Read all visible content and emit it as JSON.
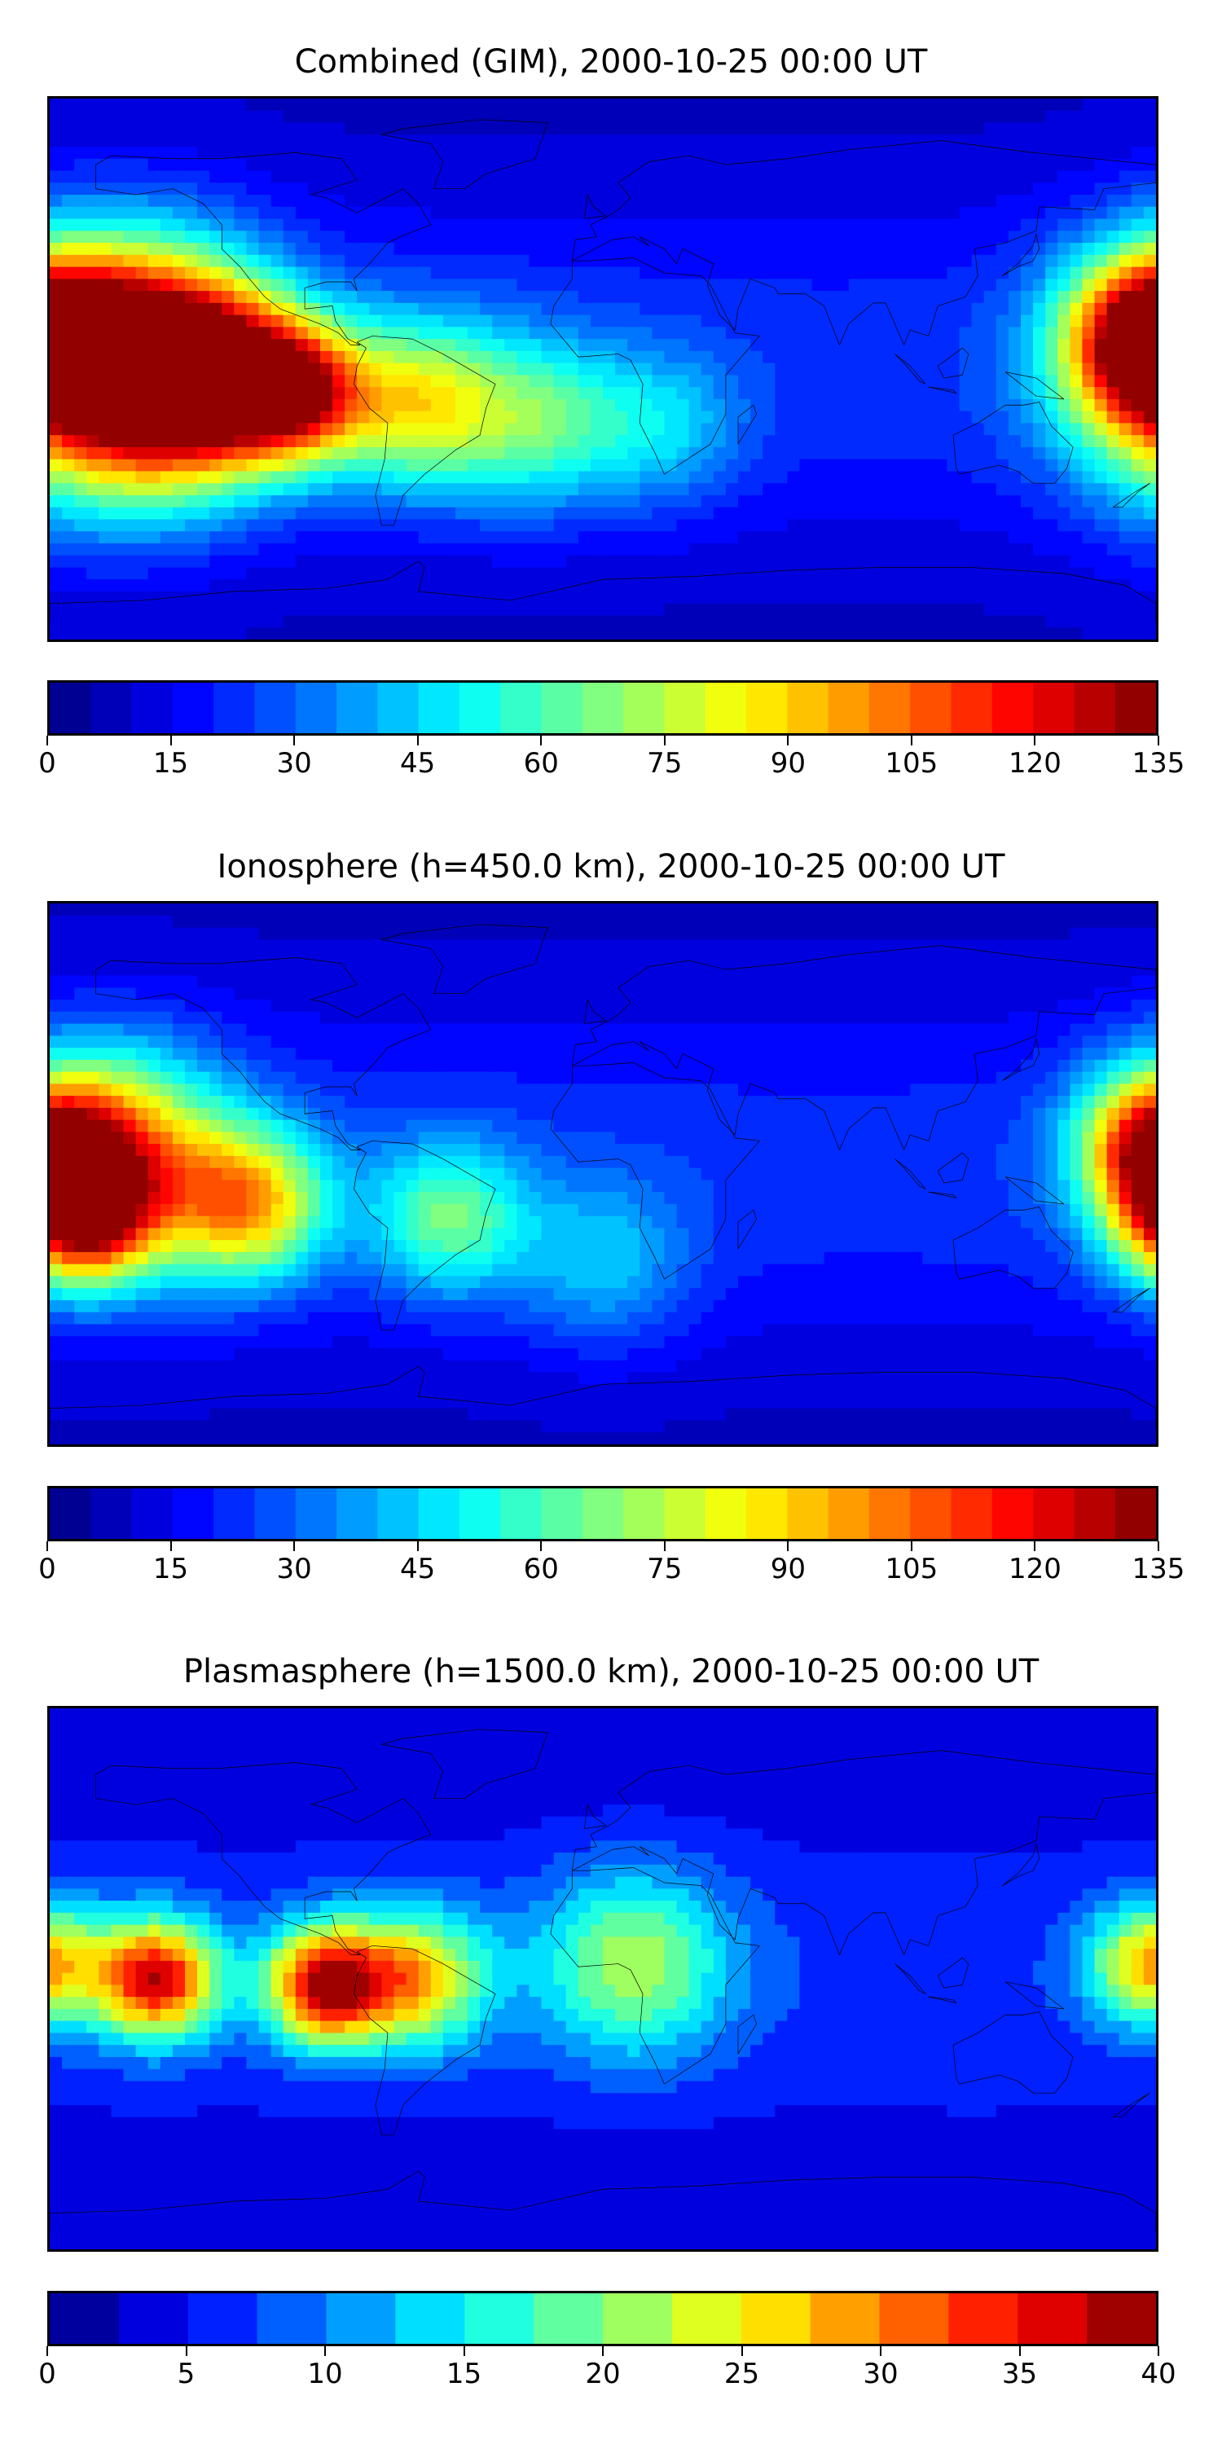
{
  "chart_data": [
    {
      "type": "heatmap",
      "title": "Combined (GIM), 2000-10-25 00:00 UT",
      "xlabel": "",
      "ylabel": "",
      "colormap": "jet",
      "grid": false,
      "colorbar": {
        "levels": [
          0,
          5,
          10,
          15,
          20,
          25,
          30,
          35,
          40,
          45,
          50,
          55,
          60,
          65,
          70,
          75,
          80,
          85,
          90,
          95,
          100,
          105,
          110,
          115,
          120,
          125,
          130,
          135
        ],
        "tick_labels": [
          "0",
          "15",
          "30",
          "45",
          "60",
          "75",
          "90",
          "105",
          "120",
          "135"
        ],
        "range": [
          0,
          135
        ]
      },
      "features": [
        {
          "lon": -160,
          "lat": 0,
          "value": 130,
          "spread": 30
        },
        {
          "lon": -130,
          "lat": -2,
          "value": 110,
          "spread": 22
        },
        {
          "lon": -100,
          "lat": -8,
          "value": 100,
          "spread": 16
        },
        {
          "lon": 178,
          "lat": 10,
          "value": 105,
          "spread": 18
        },
        {
          "lon": -60,
          "lat": -12,
          "value": 75,
          "spread": 20
        },
        {
          "lon": -20,
          "lat": -18,
          "value": 55,
          "spread": 20
        },
        {
          "lon": 20,
          "lat": -20,
          "value": 40,
          "spread": 18
        }
      ]
    },
    {
      "type": "heatmap",
      "title": "Ionosphere  (h=450.0 km), 2000-10-25 00:00 UT",
      "xlabel": "",
      "ylabel": "",
      "colormap": "jet",
      "grid": false,
      "colorbar": {
        "levels": [
          0,
          5,
          10,
          15,
          20,
          25,
          30,
          35,
          40,
          45,
          50,
          55,
          60,
          65,
          70,
          75,
          80,
          85,
          90,
          95,
          100,
          105,
          110,
          115,
          120,
          125,
          130,
          135
        ],
        "tick_labels": [
          "0",
          "15",
          "30",
          "45",
          "60",
          "75",
          "90",
          "105",
          "120",
          "135"
        ],
        "range": [
          0,
          135
        ]
      },
      "features": [
        {
          "lon": -160,
          "lat": 5,
          "value": 100,
          "spread": 25
        },
        {
          "lon": -170,
          "lat": -15,
          "value": 95,
          "spread": 15
        },
        {
          "lon": -115,
          "lat": -10,
          "value": 85,
          "spread": 18
        },
        {
          "lon": 178,
          "lat": 10,
          "value": 80,
          "spread": 16
        },
        {
          "lon": -50,
          "lat": -15,
          "value": 60,
          "spread": 18
        },
        {
          "lon": 0,
          "lat": -30,
          "value": 40,
          "spread": 20
        }
      ]
    },
    {
      "type": "heatmap",
      "title": "Plasmasphere (h=1500.0 km), 2000-10-25 00:00 UT",
      "xlabel": "",
      "ylabel": "",
      "colormap": "jet",
      "grid": false,
      "colorbar": {
        "levels": [
          0,
          2.5,
          5,
          7.5,
          10,
          12.5,
          15,
          17.5,
          20,
          22.5,
          25,
          27.5,
          30,
          32.5,
          35,
          37.5,
          40
        ],
        "tick_labels": [
          "0",
          "5",
          "10",
          "15",
          "20",
          "25",
          "30",
          "35",
          "40"
        ],
        "range": [
          0,
          40
        ]
      },
      "features": [
        {
          "lon": -145,
          "lat": 0,
          "value": 35,
          "spread": 14
        },
        {
          "lon": -90,
          "lat": -2,
          "value": 36,
          "spread": 14
        },
        {
          "lon": -60,
          "lat": 0,
          "value": 25,
          "spread": 16
        },
        {
          "lon": 178,
          "lat": 5,
          "value": 26,
          "spread": 14
        },
        {
          "lon": 10,
          "lat": 5,
          "value": 20,
          "spread": 22
        },
        {
          "lon": 120,
          "lat": -35,
          "value": 5,
          "spread": 12
        }
      ]
    }
  ]
}
